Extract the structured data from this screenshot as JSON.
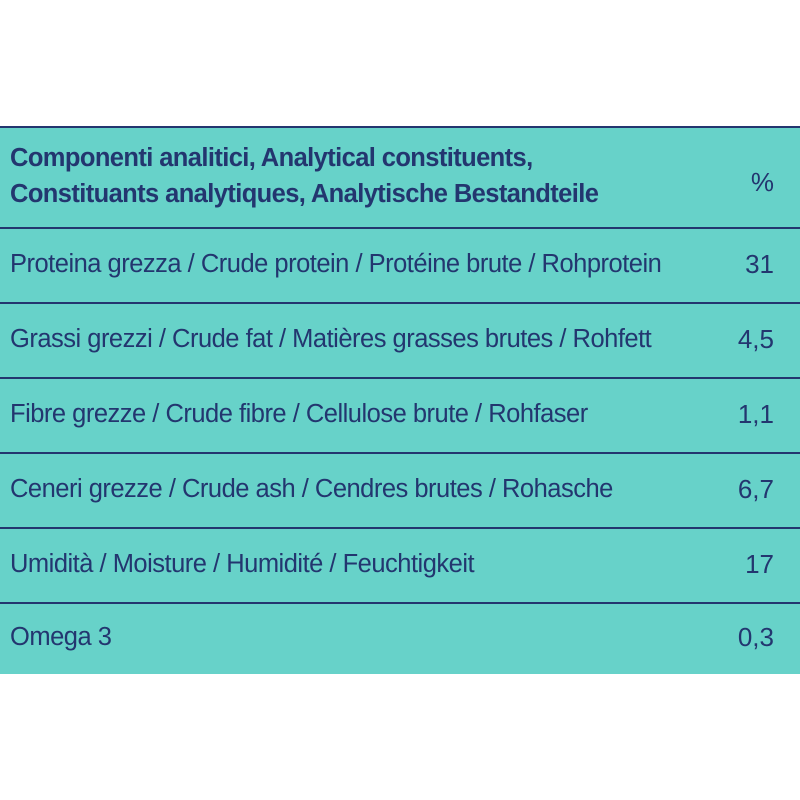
{
  "table": {
    "header": {
      "line1": "Componenti analitici, Analytical constituents,",
      "line2": "Constituants analytiques, Analytische Bestandteile",
      "unit": "%"
    },
    "rows": [
      {
        "label": "Proteina grezza / Crude protein / Protéine brute / Rohprotein",
        "value": "31"
      },
      {
        "label": "Grassi grezzi / Crude fat / Matières grasses brutes / Rohfett",
        "value": "4,5"
      },
      {
        "label": "Fibre grezze / Crude fibre / Cellulose brute / Rohfaser",
        "value": "1,1"
      },
      {
        "label": "Ceneri grezze / Crude ash / Cendres brutes / Rohasche",
        "value": "6,7"
      },
      {
        "label": "Umidità / Moisture / Humidité / Feuchtigkeit",
        "value": "17"
      },
      {
        "label": "Omega 3",
        "value": "0,3"
      }
    ],
    "colors": {
      "background": "#67d2c9",
      "text": "#23366f",
      "divider": "#23366f"
    }
  }
}
